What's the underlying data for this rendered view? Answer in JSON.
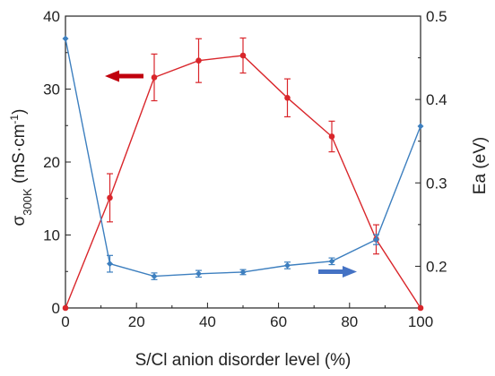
{
  "chart_data": {
    "type": "line",
    "title": "",
    "xlabel": "S/Cl anion disorder level (%)",
    "ylabel_left": {
      "symbol": "σ",
      "sub": "300K",
      "units_pre": " (mS·cm",
      "units_sup": "-1",
      "units_post": ")"
    },
    "ylabel_right": "Ea (eV)",
    "xlim": [
      0,
      100
    ],
    "ylim_left": [
      0,
      40
    ],
    "ylim_right": [
      0.15,
      0.5
    ],
    "x_ticks": [
      "0",
      "20",
      "40",
      "60",
      "80",
      "100"
    ],
    "y_left_ticks": [
      "0",
      "10",
      "20",
      "30",
      "40"
    ],
    "y_right_ticks": [
      "0.2",
      "0.3",
      "0.4",
      "0.5"
    ],
    "grid": false,
    "series": [
      {
        "axis": "left",
        "color": "#d9262b",
        "x": [
          0,
          12.5,
          25,
          37.5,
          50,
          62.5,
          75,
          87.5,
          100
        ],
        "y": [
          0,
          15.1,
          31.6,
          33.9,
          34.6,
          28.8,
          23.5,
          9.4,
          0
        ],
        "err": [
          0,
          3.3,
          3.2,
          3.0,
          2.4,
          2.6,
          2.1,
          2.0,
          0
        ]
      },
      {
        "axis": "right",
        "color": "#3d7fbf",
        "x": [
          0,
          12.5,
          25,
          37.5,
          50,
          62.5,
          75,
          87.5,
          100
        ],
        "y": [
          0.473,
          0.203,
          0.188,
          0.191,
          0.193,
          0.201,
          0.206,
          0.232,
          0.368
        ],
        "err": [
          0,
          0.01,
          0.004,
          0.004,
          0.003,
          0.004,
          0.004,
          0.006,
          0
        ]
      }
    ],
    "annotations": [
      {
        "shape": "arrow-left",
        "color": "#c0000d",
        "points_to": "left axis"
      },
      {
        "shape": "arrow-right",
        "color": "#4472c4",
        "points_to": "right axis"
      }
    ]
  }
}
